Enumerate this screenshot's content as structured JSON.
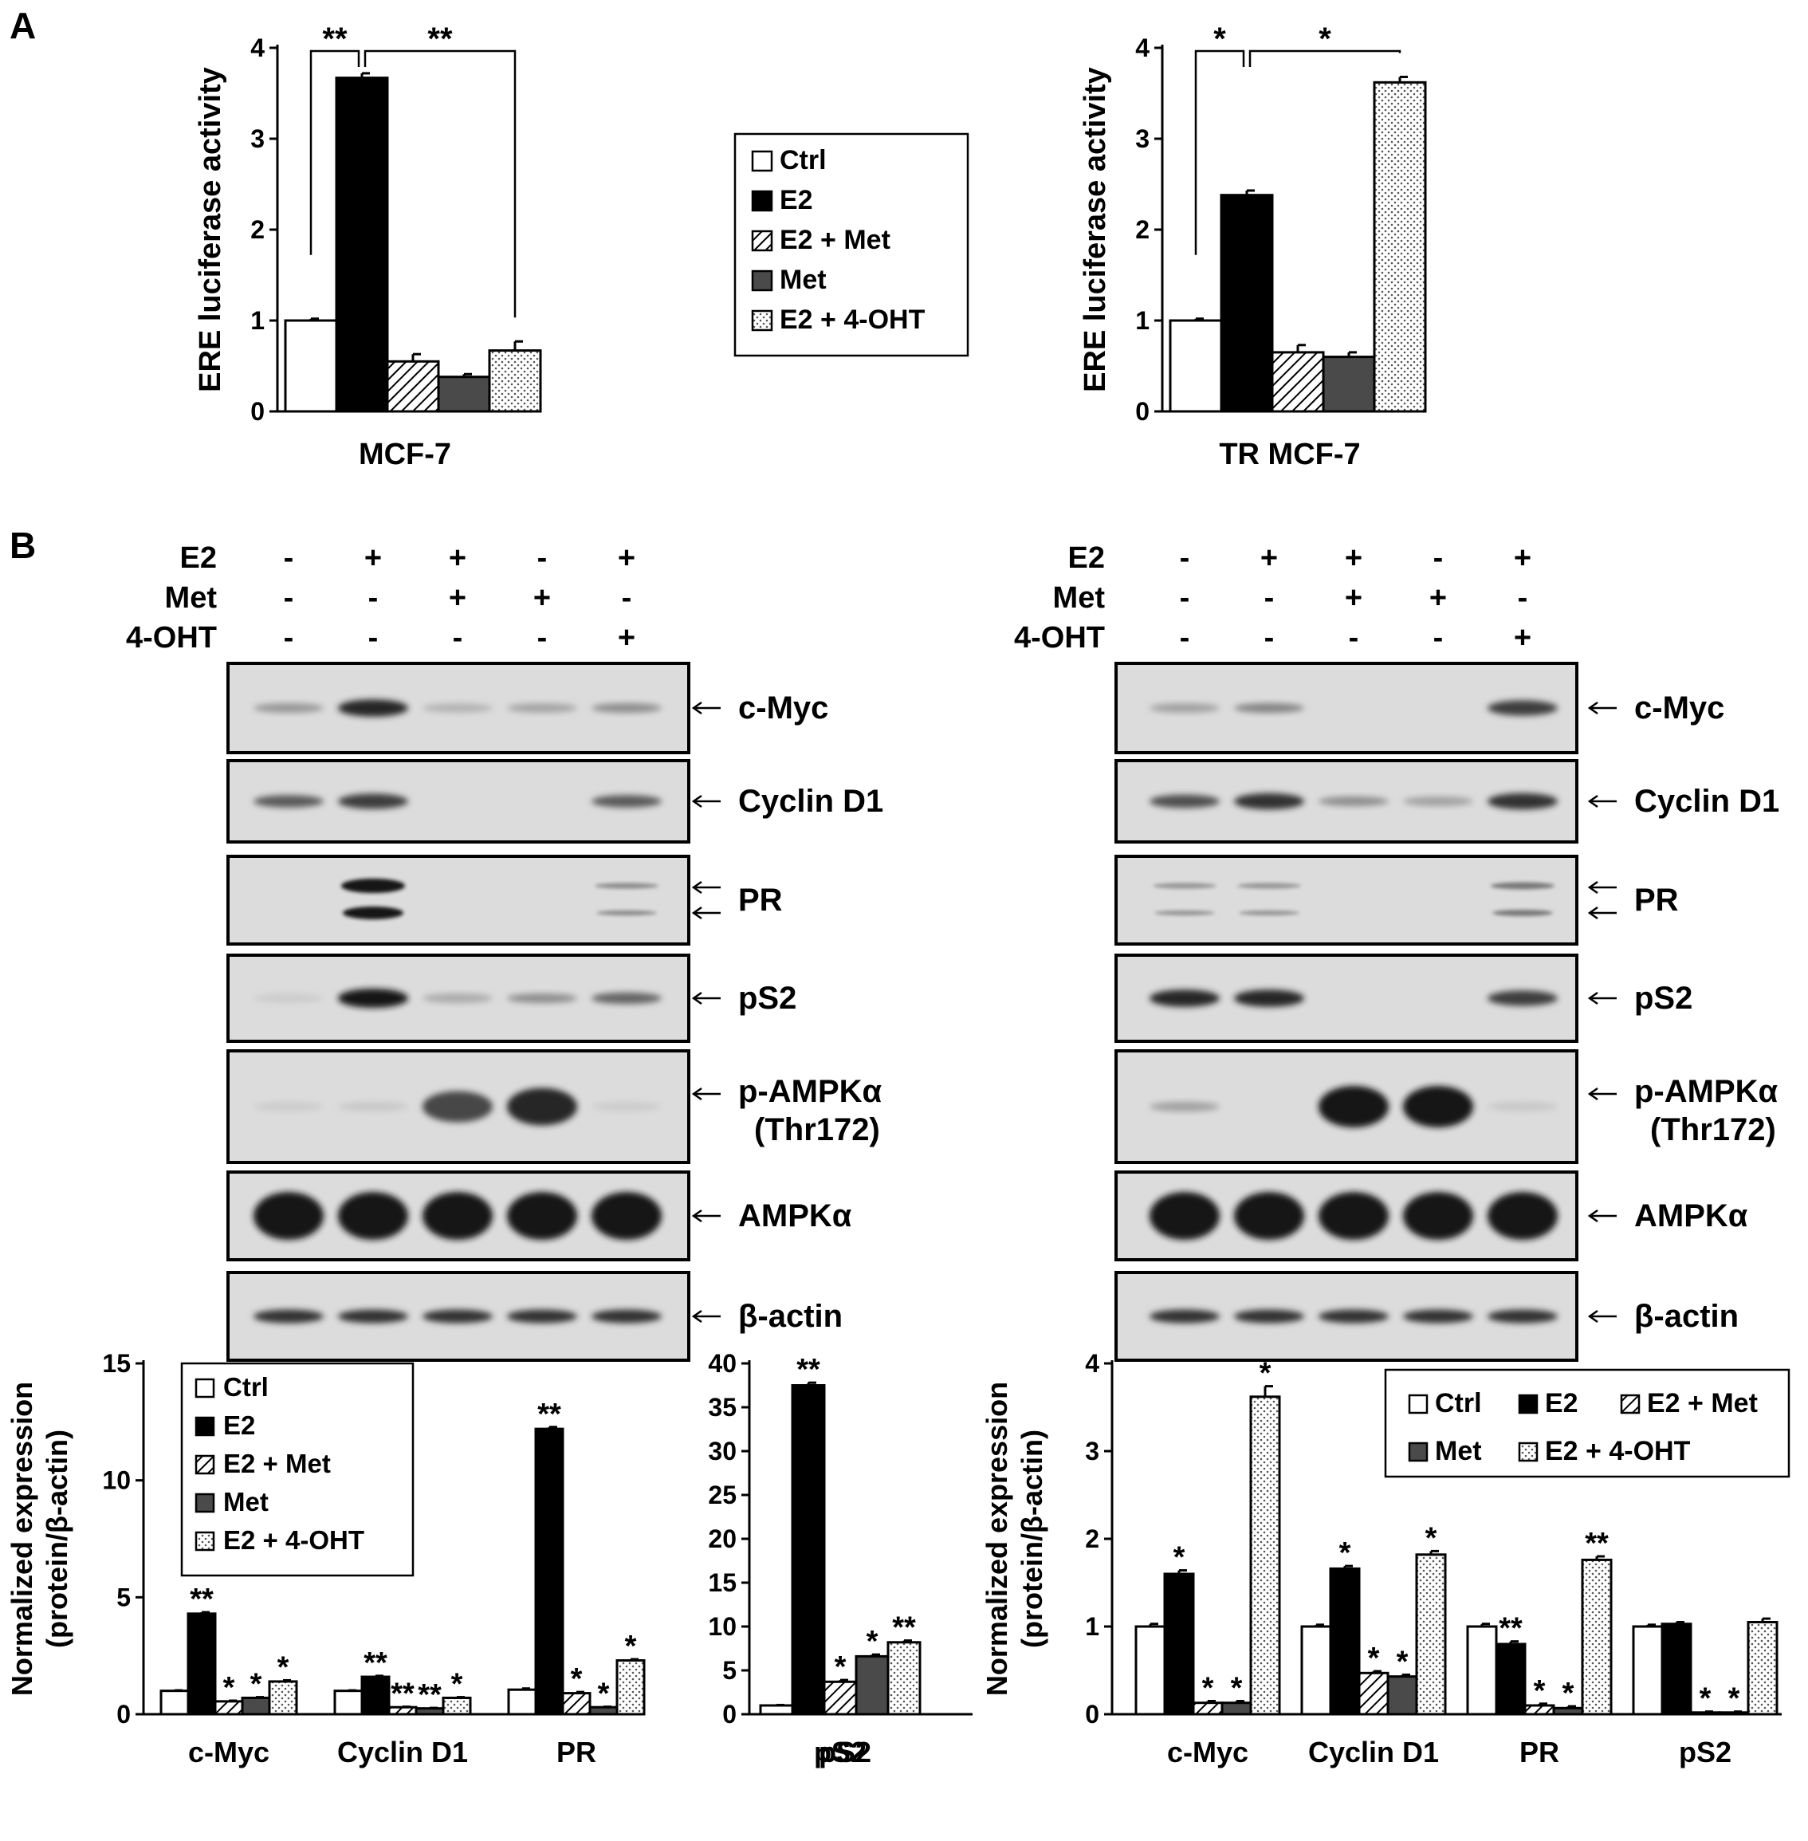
{
  "panels": {
    "a_label": "A",
    "b_label": "B"
  },
  "colors": {
    "ctrl": "#ffffff",
    "e2": "#000000",
    "met": "#4a4a4a",
    "ohp_dot": "#555555",
    "stroke": "#000000"
  },
  "legend_labels": [
    "Ctrl",
    "E2",
    "E2 + Met",
    "Met",
    "E2 + 4-OHT"
  ],
  "treatment_rows": [
    {
      "label": "E2",
      "values": [
        "-",
        "+",
        "+",
        "-",
        "+"
      ]
    },
    {
      "label": "Met",
      "values": [
        "-",
        "-",
        "+",
        "+",
        "-"
      ]
    },
    {
      "label": "4-OHT",
      "values": [
        "-",
        "-",
        "-",
        "-",
        "+"
      ]
    }
  ],
  "blot_labels": [
    {
      "name": "c-Myc",
      "lines": [
        "c-Myc"
      ],
      "arrows": 1
    },
    {
      "name": "Cyclin D1",
      "lines": [
        "Cyclin D1"
      ],
      "arrows": 1
    },
    {
      "name": "PR",
      "lines": [
        "PR"
      ],
      "arrows": 2
    },
    {
      "name": "pS2",
      "lines": [
        "pS2"
      ],
      "arrows": 1
    },
    {
      "name": "p-AMPKα",
      "lines": [
        "p-AMPKα",
        "(Thr172)"
      ],
      "arrows": 1
    },
    {
      "name": "AMPKα",
      "lines": [
        "AMPKα"
      ],
      "arrows": 1
    },
    {
      "name": "β-actin",
      "lines": [
        "β-actin"
      ],
      "arrows": 1
    }
  ],
  "blots_left": [
    [
      0.35,
      0.9,
      0.2,
      0.28,
      0.4
    ],
    [
      0.65,
      0.8,
      0,
      0,
      0.65
    ],
    [
      0,
      1.0,
      0,
      0,
      0.4
    ],
    [
      0.08,
      1.0,
      0.25,
      0.4,
      0.6
    ],
    [
      0.08,
      0.1,
      0.75,
      0.9,
      0.08
    ],
    [
      1,
      1,
      1,
      1,
      1
    ],
    [
      0.85,
      0.85,
      0.85,
      0.85,
      0.85
    ]
  ],
  "blots_right": [
    [
      0.3,
      0.45,
      0,
      0,
      0.8
    ],
    [
      0.7,
      0.85,
      0.4,
      0.3,
      0.85
    ],
    [
      0.35,
      0.35,
      0,
      0,
      0.5
    ],
    [
      0.9,
      0.9,
      0,
      0,
      0.8
    ],
    [
      0.3,
      0,
      1,
      1,
      0.1
    ],
    [
      1,
      1,
      1,
      1,
      1
    ],
    [
      0.85,
      0.85,
      0.85,
      0.85,
      0.85
    ]
  ],
  "chart_data": [
    {
      "id": "a-left",
      "type": "bar",
      "xlabel": "MCF-7",
      "ylabel": "ERE luciferase activity",
      "ylim": [
        0,
        4
      ],
      "yticks": [
        0,
        1,
        2,
        3,
        4
      ],
      "series": [
        {
          "name": "Ctrl",
          "values": [
            1.0
          ],
          "errors": [
            0.02
          ]
        },
        {
          "name": "E2",
          "values": [
            3.67
          ],
          "errors": [
            0.05
          ]
        },
        {
          "name": "E2 + Met",
          "values": [
            0.55
          ],
          "errors": [
            0.08
          ]
        },
        {
          "name": "Met",
          "values": [
            0.38
          ],
          "errors": [
            0.03
          ]
        },
        {
          "name": "E2 + 4-OHT",
          "values": [
            0.67
          ],
          "errors": [
            0.1
          ]
        }
      ],
      "annotations": [
        {
          "from": "Ctrl",
          "to": "E2",
          "text": "**"
        },
        {
          "from": "E2",
          "to": "E2 + 4-OHT",
          "text": "**"
        }
      ],
      "legend": "right"
    },
    {
      "id": "a-right",
      "type": "bar",
      "xlabel": "TR MCF-7",
      "ylabel": "ERE luciferase activity",
      "ylim": [
        0,
        4
      ],
      "yticks": [
        0,
        1,
        2,
        3,
        4
      ],
      "series": [
        {
          "name": "Ctrl",
          "values": [
            1.0
          ],
          "errors": [
            0.02
          ]
        },
        {
          "name": "E2",
          "values": [
            2.38
          ],
          "errors": [
            0.05
          ]
        },
        {
          "name": "E2 + Met",
          "values": [
            0.65
          ],
          "errors": [
            0.08
          ]
        },
        {
          "name": "Met",
          "values": [
            0.6
          ],
          "errors": [
            0.05
          ]
        },
        {
          "name": "E2 + 4-OHT",
          "values": [
            3.62
          ],
          "errors": [
            0.06
          ]
        }
      ],
      "annotations": [
        {
          "from": "Ctrl",
          "to": "E2",
          "text": "*"
        },
        {
          "from": "E2",
          "to": "E2 + 4-OHT",
          "text": "*"
        }
      ]
    },
    {
      "id": "b-left",
      "type": "bar",
      "ylabel_lines": [
        "Normalized expression",
        "(protein/β-actin)"
      ],
      "ylim": [
        0,
        15
      ],
      "yticks": [
        0,
        5,
        10,
        15
      ],
      "categories": [
        "c-Myc",
        "Cyclin D1",
        "PR"
      ],
      "series": [
        {
          "name": "Ctrl",
          "values": [
            1.0,
            1.0,
            1.05
          ],
          "errors": [
            0.02,
            0.02,
            0.05
          ]
        },
        {
          "name": "E2",
          "values": [
            4.3,
            1.6,
            12.2
          ],
          "errors": [
            0.06,
            0.04,
            0.08
          ]
        },
        {
          "name": "E2 + Met",
          "values": [
            0.55,
            0.3,
            0.9
          ],
          "errors": [
            0.03,
            0.02,
            0.05
          ]
        },
        {
          "name": "Met",
          "values": [
            0.7,
            0.25,
            0.3
          ],
          "errors": [
            0.03,
            0.02,
            0.02
          ]
        },
        {
          "name": "E2 + 4-OHT",
          "values": [
            1.4,
            0.7,
            2.3
          ],
          "errors": [
            0.05,
            0.03,
            0.05
          ]
        }
      ],
      "stars": [
        [
          "",
          "**",
          "*",
          "*",
          "*"
        ],
        [
          "",
          "**",
          "**",
          "**",
          "*"
        ],
        [
          "",
          "**",
          "*",
          "*",
          "*"
        ]
      ],
      "legend": "upper-center"
    },
    {
      "id": "b-left-ps2",
      "type": "bar",
      "ylim": [
        0,
        40
      ],
      "yticks": [
        0,
        5,
        10,
        15,
        20,
        25,
        30,
        35,
        40
      ],
      "categories": [
        "pS2"
      ],
      "series": [
        {
          "name": "Ctrl",
          "values": [
            1.0
          ],
          "errors": [
            0.05
          ]
        },
        {
          "name": "E2",
          "values": [
            37.5
          ],
          "errors": [
            0.3
          ]
        },
        {
          "name": "E2 + Met",
          "values": [
            3.7
          ],
          "errors": [
            0.2
          ]
        },
        {
          "name": "Met",
          "values": [
            6.6
          ],
          "errors": [
            0.2
          ]
        },
        {
          "name": "E2 + 4-OHT",
          "values": [
            8.2
          ],
          "errors": [
            0.2
          ]
        }
      ],
      "stars": [
        [
          "",
          "**",
          "*",
          "*",
          "**"
        ]
      ]
    },
    {
      "id": "b-right",
      "type": "bar",
      "ylabel_lines": [
        "Normalized expression",
        "(protein/β-actin)"
      ],
      "ylim": [
        0,
        4
      ],
      "yticks": [
        0,
        1,
        2,
        3,
        4
      ],
      "categories": [
        "c-Myc",
        "Cyclin D1",
        "PR",
        "pS2"
      ],
      "series": [
        {
          "name": "Ctrl",
          "values": [
            1.0,
            1.0,
            1.0,
            1.0
          ],
          "errors": [
            0.03,
            0.02,
            0.03,
            0.02
          ]
        },
        {
          "name": "E2",
          "values": [
            1.6,
            1.66,
            0.8,
            1.03
          ],
          "errors": [
            0.04,
            0.03,
            0.03,
            0.02
          ]
        },
        {
          "name": "E2 + Met",
          "values": [
            0.13,
            0.47,
            0.1,
            0.02
          ],
          "errors": [
            0.02,
            0.02,
            0.02,
            0.01
          ]
        },
        {
          "name": "Met",
          "values": [
            0.13,
            0.43,
            0.07,
            0.02
          ],
          "errors": [
            0.02,
            0.02,
            0.02,
            0.01
          ]
        },
        {
          "name": "E2 + 4-OHT",
          "values": [
            3.62,
            1.82,
            1.76,
            1.05
          ],
          "errors": [
            0.12,
            0.04,
            0.04,
            0.04
          ]
        }
      ],
      "stars": [
        [
          "",
          "*",
          "*",
          "*",
          "*"
        ],
        [
          "",
          "*",
          "*",
          "*",
          "*"
        ],
        [
          "",
          "**",
          "*",
          "*",
          "**"
        ],
        [
          "",
          "",
          "*",
          "*",
          ""
        ]
      ],
      "legend": "upper-right-grid"
    }
  ]
}
